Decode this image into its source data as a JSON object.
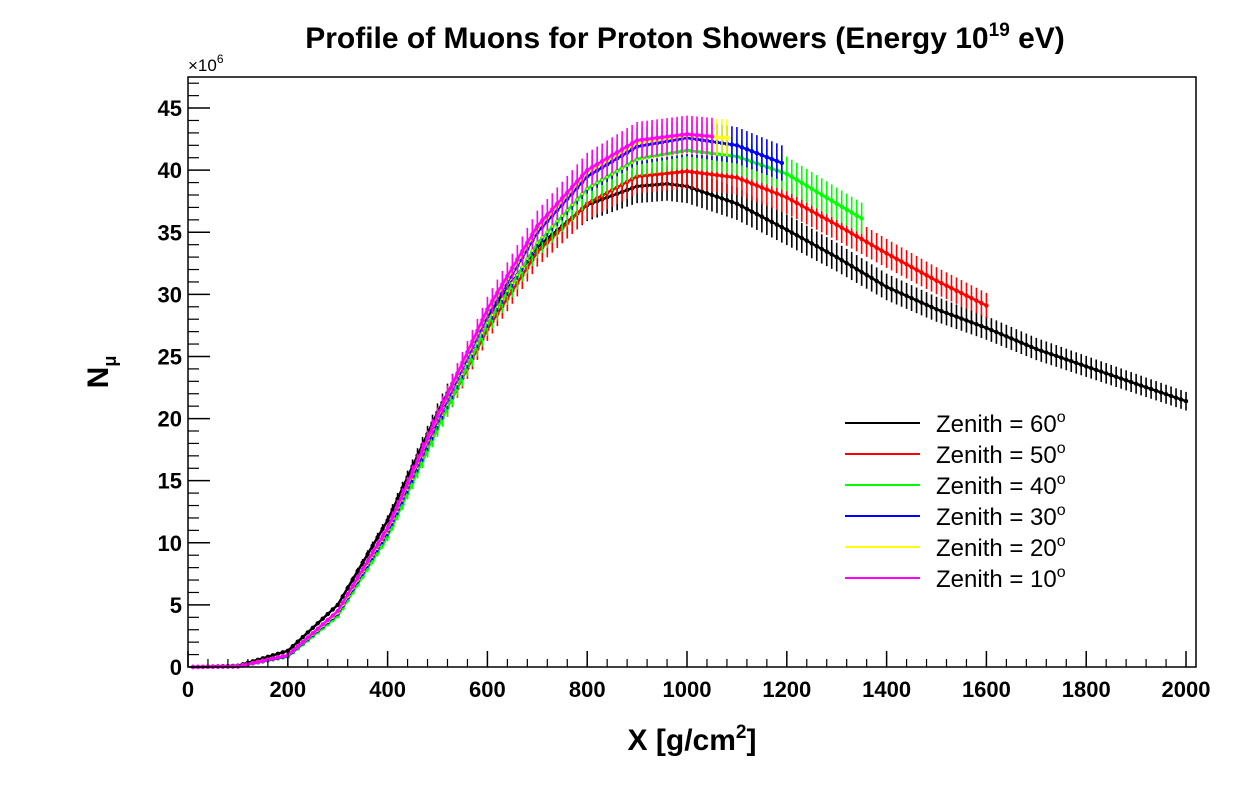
{
  "chart_data": {
    "type": "line",
    "title": {
      "main": "Profile of Muons for Proton Showers (Energy 10",
      "sup": "19",
      "end": " eV)"
    },
    "xlabel": {
      "main": "X [g/cm",
      "sup": "2",
      "end": "]"
    },
    "ylabel": {
      "main": "N",
      "sub": "μ"
    },
    "y_multiplier": {
      "main": "×10",
      "sup": "6"
    },
    "xlim": [
      0,
      2020
    ],
    "ylim": [
      0,
      47.5
    ],
    "x_ticks": [
      0,
      200,
      400,
      600,
      800,
      1000,
      1200,
      1400,
      1600,
      1800,
      2000
    ],
    "x_tick_labels": [
      "0",
      "200",
      "400",
      "600",
      "800",
      "1000",
      "1200",
      "1400",
      "1600",
      "1800",
      "2000"
    ],
    "y_ticks": [
      0,
      5,
      10,
      15,
      20,
      25,
      30,
      35,
      40,
      45
    ],
    "y_tick_labels": [
      "0",
      "5",
      "10",
      "15",
      "20",
      "25",
      "30",
      "35",
      "40",
      "45"
    ],
    "grid": false,
    "legend_position": "right",
    "series": [
      {
        "name": "Zenith = 60",
        "name_sup": "o",
        "color": "#000000",
        "x_start": 10,
        "x_end": 2000,
        "error_frac": 0.035,
        "points": [
          [
            10,
            0
          ],
          [
            100,
            0.1
          ],
          [
            200,
            1.3
          ],
          [
            300,
            5.0
          ],
          [
            400,
            11.8
          ],
          [
            500,
            20.5
          ],
          [
            600,
            28.2
          ],
          [
            700,
            33.8
          ],
          [
            800,
            37.2
          ],
          [
            900,
            38.7
          ],
          [
            960,
            38.9
          ],
          [
            1000,
            38.7
          ],
          [
            1100,
            37.3
          ],
          [
            1200,
            35.2
          ],
          [
            1300,
            33.0
          ],
          [
            1400,
            30.6
          ],
          [
            1500,
            28.8
          ],
          [
            1600,
            27.3
          ],
          [
            1700,
            25.6
          ],
          [
            1800,
            24.2
          ],
          [
            1900,
            22.8
          ],
          [
            2000,
            21.4
          ]
        ]
      },
      {
        "name": "Zenith = 50",
        "name_sup": "o",
        "color": "#ff0000",
        "x_start": 10,
        "x_end": 1605,
        "error_frac": 0.035,
        "points": [
          [
            10,
            0
          ],
          [
            100,
            0.05
          ],
          [
            200,
            0.95
          ],
          [
            300,
            4.3
          ],
          [
            400,
            10.8
          ],
          [
            500,
            19.3
          ],
          [
            600,
            27.2
          ],
          [
            700,
            33.4
          ],
          [
            800,
            37.3
          ],
          [
            900,
            39.5
          ],
          [
            1000,
            39.9
          ],
          [
            1100,
            39.4
          ],
          [
            1200,
            37.8
          ],
          [
            1300,
            35.6
          ],
          [
            1400,
            33.3
          ],
          [
            1500,
            31.1
          ],
          [
            1605,
            29.0
          ]
        ]
      },
      {
        "name": "Zenith = 40",
        "name_sup": "o",
        "color": "#00ff00",
        "x_start": 10,
        "x_end": 1355,
        "error_frac": 0.035,
        "points": [
          [
            10,
            0
          ],
          [
            100,
            0.04
          ],
          [
            200,
            0.85
          ],
          [
            300,
            4.1
          ],
          [
            400,
            10.5
          ],
          [
            500,
            19.2
          ],
          [
            600,
            27.6
          ],
          [
            700,
            34.1
          ],
          [
            800,
            38.5
          ],
          [
            900,
            40.9
          ],
          [
            1000,
            41.6
          ],
          [
            1100,
            41.1
          ],
          [
            1200,
            39.7
          ],
          [
            1300,
            37.3
          ],
          [
            1355,
            36.0
          ]
        ]
      },
      {
        "name": "Zenith = 30",
        "name_sup": "o",
        "color": "#0000ff",
        "x_start": 10,
        "x_end": 1195,
        "error_frac": 0.035,
        "points": [
          [
            10,
            0
          ],
          [
            100,
            0.04
          ],
          [
            200,
            0.9
          ],
          [
            300,
            4.3
          ],
          [
            400,
            10.9
          ],
          [
            500,
            19.8
          ],
          [
            600,
            28.3
          ],
          [
            700,
            35.0
          ],
          [
            800,
            39.5
          ],
          [
            900,
            41.9
          ],
          [
            1000,
            42.6
          ],
          [
            1100,
            42.0
          ],
          [
            1195,
            40.5
          ]
        ]
      },
      {
        "name": "Zenith = 20",
        "name_sup": "o",
        "color": "#ffff00",
        "x_start": 10,
        "x_end": 1080,
        "error_frac": 0.035,
        "points": [
          [
            10,
            0
          ],
          [
            100,
            0.04
          ],
          [
            200,
            0.95
          ],
          [
            300,
            4.4
          ],
          [
            400,
            11.1
          ],
          [
            500,
            20.1
          ],
          [
            600,
            28.6
          ],
          [
            700,
            35.3
          ],
          [
            800,
            39.8
          ],
          [
            900,
            42.2
          ],
          [
            1000,
            42.8
          ],
          [
            1080,
            42.6
          ]
        ]
      },
      {
        "name": "Zenith = 10",
        "name_sup": "o",
        "color": "#ff00ff",
        "x_start": 10,
        "x_end": 1055,
        "error_frac": 0.035,
        "points": [
          [
            10,
            0
          ],
          [
            100,
            0.04
          ],
          [
            200,
            0.95
          ],
          [
            300,
            4.5
          ],
          [
            400,
            11.2
          ],
          [
            500,
            20.2
          ],
          [
            600,
            28.8
          ],
          [
            700,
            35.5
          ],
          [
            800,
            40.0
          ],
          [
            900,
            42.4
          ],
          [
            1000,
            42.9
          ],
          [
            1055,
            42.7
          ]
        ]
      }
    ]
  }
}
